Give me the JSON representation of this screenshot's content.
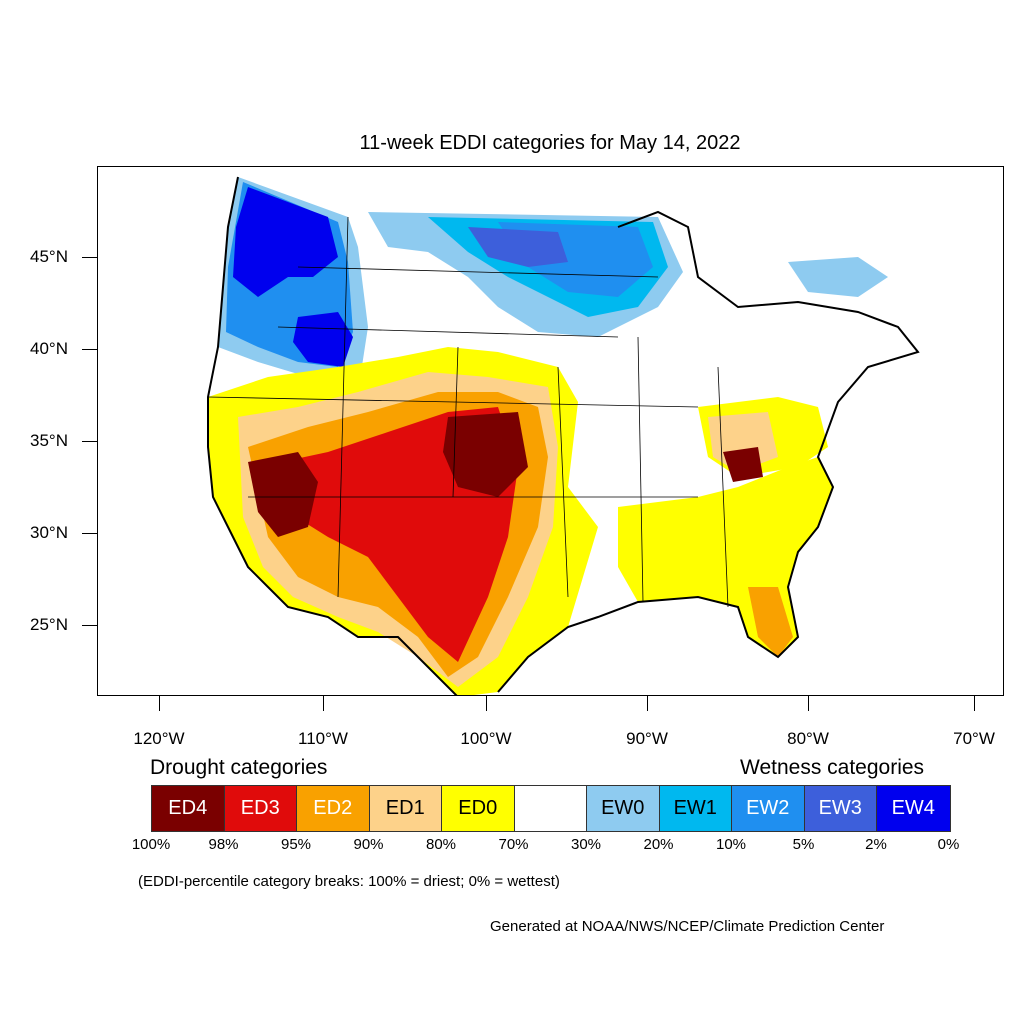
{
  "title": "11-week EDDI categories for May 14, 2022",
  "map": {
    "y_ticks": [
      "45°N",
      "40°N",
      "35°N",
      "30°N",
      "25°N"
    ],
    "x_ticks": [
      "120°W",
      "110°W",
      "100°W",
      "90°W",
      "80°W",
      "70°W"
    ]
  },
  "legend": {
    "drought_heading": "Drought categories",
    "wetness_heading": "Wetness categories",
    "categories": [
      {
        "label": "ED4",
        "color": "#7a0000",
        "text_color": "#ffffff"
      },
      {
        "label": "ED3",
        "color": "#e00b0b",
        "text_color": "#ffffff"
      },
      {
        "label": "ED2",
        "color": "#f9a100",
        "text_color": "#ffffff"
      },
      {
        "label": "ED1",
        "color": "#fdd28a",
        "text_color": "#000000"
      },
      {
        "label": "ED0",
        "color": "#ffff00",
        "text_color": "#000000"
      },
      {
        "label": "",
        "color": "#ffffff",
        "text_color": "#000000"
      },
      {
        "label": "EW0",
        "color": "#8ecbf0",
        "text_color": "#000000"
      },
      {
        "label": "EW1",
        "color": "#00b8ef",
        "text_color": "#000000"
      },
      {
        "label": "EW2",
        "color": "#1f8ff0",
        "text_color": "#ffffff"
      },
      {
        "label": "EW3",
        "color": "#3d5fdb",
        "text_color": "#ffffff"
      },
      {
        "label": "EW4",
        "color": "#0000ee",
        "text_color": "#ffffff"
      }
    ],
    "breaks": [
      "100%",
      "98%",
      "95%",
      "90%",
      "80%",
      "70%",
      "30%",
      "20%",
      "10%",
      "5%",
      "2%",
      "0%"
    ]
  },
  "note": "(EDDI-percentile category breaks: 100% = driest; 0% = wettest)",
  "credit": "Generated at NOAA/NWS/NCEP/Climate Prediction Center"
}
